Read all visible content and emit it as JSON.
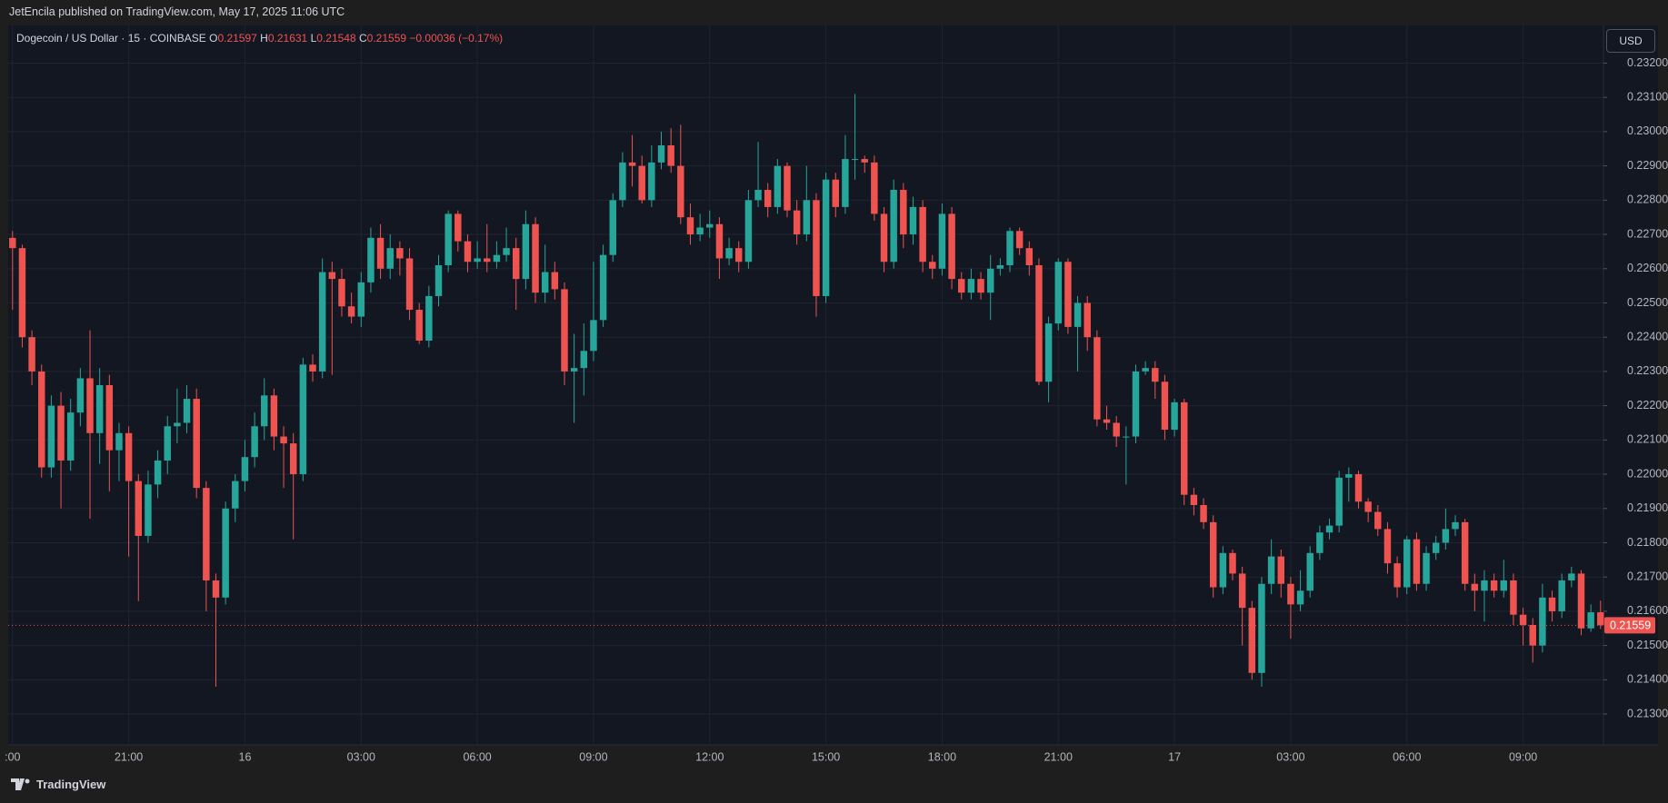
{
  "header": {
    "published": "JetEncila published on TradingView.com, May 17, 2025 11:06 UTC"
  },
  "footer": {
    "brand": "TradingView"
  },
  "chart_data": {
    "type": "candlestick",
    "title": "Dogecoin / US Dollar · 15 · COINBASE",
    "currency": "USD",
    "ohlc_labels": [
      "O",
      "H",
      "L",
      "C"
    ],
    "change": "−0.00036 (−0.17%)",
    "up_color": "#26a69a",
    "down_color": "#ef5350",
    "grid": true,
    "ylim": [
      0.2121,
      0.2331
    ],
    "yticks": [
      {
        "value": 0.213,
        "label": "0.21300"
      },
      {
        "value": 0.214,
        "label": "0.21400"
      },
      {
        "value": 0.215,
        "label": "0.21500"
      },
      {
        "value": 0.216,
        "label": "0.21600"
      },
      {
        "value": 0.217,
        "label": "0.21700"
      },
      {
        "value": 0.218,
        "label": "0.21800"
      },
      {
        "value": 0.219,
        "label": "0.21900"
      },
      {
        "value": 0.22,
        "label": "0.22000"
      },
      {
        "value": 0.221,
        "label": "0.22100"
      },
      {
        "value": 0.222,
        "label": "0.22200"
      },
      {
        "value": 0.223,
        "label": "0.22300"
      },
      {
        "value": 0.224,
        "label": "0.22400"
      },
      {
        "value": 0.225,
        "label": "0.22500"
      },
      {
        "value": 0.226,
        "label": "0.22600"
      },
      {
        "value": 0.227,
        "label": "0.22700"
      },
      {
        "value": 0.228,
        "label": "0.22800"
      },
      {
        "value": 0.229,
        "label": "0.22900"
      },
      {
        "value": 0.23,
        "label": "0.23000"
      },
      {
        "value": 0.231,
        "label": "0.23100"
      },
      {
        "value": 0.232,
        "label": "0.23200"
      }
    ],
    "xlim": [
      -0.45,
      164.3
    ],
    "xticks": [
      {
        "value": 0,
        "label": ":00"
      },
      {
        "value": 12,
        "label": "21:00"
      },
      {
        "value": 24,
        "label": "16"
      },
      {
        "value": 36,
        "label": "03:00"
      },
      {
        "value": 48,
        "label": "06:00"
      },
      {
        "value": 60,
        "label": "09:00"
      },
      {
        "value": 72,
        "label": "12:00"
      },
      {
        "value": 84,
        "label": "15:00"
      },
      {
        "value": 96,
        "label": "18:00"
      },
      {
        "value": 108,
        "label": "21:00"
      },
      {
        "value": 120,
        "label": "17"
      },
      {
        "value": 132,
        "label": "03:00"
      },
      {
        "value": 144,
        "label": "06:00"
      },
      {
        "value": 156,
        "label": "09:00"
      }
    ],
    "candles": [
      [
        0.2269,
        0.2271,
        0.2248,
        0.2266
      ],
      [
        0.2266,
        0.2267,
        0.2237,
        0.224
      ],
      [
        0.224,
        0.2242,
        0.2226,
        0.223
      ],
      [
        0.223,
        0.2232,
        0.2199,
        0.2202
      ],
      [
        0.2202,
        0.2223,
        0.2199,
        0.222
      ],
      [
        0.222,
        0.2224,
        0.219,
        0.2204
      ],
      [
        0.2204,
        0.2222,
        0.2201,
        0.2218
      ],
      [
        0.2218,
        0.2231,
        0.2214,
        0.2228
      ],
      [
        0.2228,
        0.2242,
        0.2187,
        0.2212
      ],
      [
        0.2212,
        0.2231,
        0.2203,
        0.2226
      ],
      [
        0.2226,
        0.2229,
        0.2195,
        0.2207
      ],
      [
        0.2207,
        0.2215,
        0.2198,
        0.2212
      ],
      [
        0.2212,
        0.2214,
        0.2176,
        0.2198
      ],
      [
        0.2198,
        0.22,
        0.2163,
        0.2182
      ],
      [
        0.2182,
        0.2201,
        0.218,
        0.2197
      ],
      [
        0.2197,
        0.2207,
        0.2193,
        0.2204
      ],
      [
        0.2204,
        0.2217,
        0.22,
        0.2214
      ],
      [
        0.2214,
        0.2225,
        0.2209,
        0.2215
      ],
      [
        0.2215,
        0.2226,
        0.2212,
        0.2222
      ],
      [
        0.2222,
        0.2225,
        0.2193,
        0.2196
      ],
      [
        0.2196,
        0.2198,
        0.216,
        0.2169
      ],
      [
        0.2169,
        0.2171,
        0.2138,
        0.2164
      ],
      [
        0.2164,
        0.2192,
        0.2162,
        0.219
      ],
      [
        0.219,
        0.22,
        0.2186,
        0.2198
      ],
      [
        0.2198,
        0.221,
        0.2195,
        0.2205
      ],
      [
        0.2205,
        0.2218,
        0.2202,
        0.2214
      ],
      [
        0.2214,
        0.2228,
        0.221,
        0.2223
      ],
      [
        0.2223,
        0.2225,
        0.2207,
        0.2211
      ],
      [
        0.2211,
        0.2214,
        0.2196,
        0.2209
      ],
      [
        0.2209,
        0.2212,
        0.2181,
        0.22
      ],
      [
        0.22,
        0.2234,
        0.2198,
        0.2232
      ],
      [
        0.2232,
        0.2235,
        0.2227,
        0.223
      ],
      [
        0.223,
        0.2263,
        0.2228,
        0.2259
      ],
      [
        0.2259,
        0.2262,
        0.2229,
        0.2257
      ],
      [
        0.2257,
        0.226,
        0.2246,
        0.2249
      ],
      [
        0.2249,
        0.2253,
        0.2244,
        0.2246
      ],
      [
        0.2246,
        0.2259,
        0.2243,
        0.2256
      ],
      [
        0.2256,
        0.2272,
        0.2253,
        0.2269
      ],
      [
        0.2269,
        0.2273,
        0.2257,
        0.226
      ],
      [
        0.226,
        0.227,
        0.2257,
        0.2266
      ],
      [
        0.2266,
        0.2268,
        0.2258,
        0.2263
      ],
      [
        0.2263,
        0.2266,
        0.2245,
        0.2248
      ],
      [
        0.2248,
        0.225,
        0.2238,
        0.2239
      ],
      [
        0.2239,
        0.2255,
        0.2237,
        0.2252
      ],
      [
        0.2252,
        0.2264,
        0.2249,
        0.2261
      ],
      [
        0.2261,
        0.2277,
        0.2259,
        0.2276
      ],
      [
        0.2276,
        0.2277,
        0.2265,
        0.2268
      ],
      [
        0.2268,
        0.227,
        0.2259,
        0.2262
      ],
      [
        0.2262,
        0.2268,
        0.226,
        0.2263
      ],
      [
        0.2263,
        0.2273,
        0.2259,
        0.2262
      ],
      [
        0.2262,
        0.2268,
        0.226,
        0.2264
      ],
      [
        0.2264,
        0.2272,
        0.2262,
        0.2266
      ],
      [
        0.2266,
        0.2269,
        0.2248,
        0.2257
      ],
      [
        0.2257,
        0.2277,
        0.2254,
        0.2273
      ],
      [
        0.2273,
        0.2275,
        0.225,
        0.2253
      ],
      [
        0.2253,
        0.2267,
        0.225,
        0.2259
      ],
      [
        0.2259,
        0.2262,
        0.2251,
        0.2254
      ],
      [
        0.2254,
        0.2256,
        0.2226,
        0.223
      ],
      [
        0.223,
        0.2241,
        0.2215,
        0.2231
      ],
      [
        0.2231,
        0.2244,
        0.2223,
        0.2236
      ],
      [
        0.2236,
        0.2262,
        0.2233,
        0.2245
      ],
      [
        0.2245,
        0.2267,
        0.2243,
        0.2264
      ],
      [
        0.2264,
        0.2282,
        0.2262,
        0.228
      ],
      [
        0.228,
        0.2294,
        0.2278,
        0.2291
      ],
      [
        0.2291,
        0.2299,
        0.2284,
        0.229
      ],
      [
        0.229,
        0.2293,
        0.2279,
        0.228
      ],
      [
        0.228,
        0.2296,
        0.2278,
        0.2291
      ],
      [
        0.2291,
        0.23,
        0.2289,
        0.2296
      ],
      [
        0.2296,
        0.2301,
        0.2288,
        0.229
      ],
      [
        0.229,
        0.2302,
        0.2273,
        0.2275
      ],
      [
        0.2275,
        0.2279,
        0.2267,
        0.227
      ],
      [
        0.227,
        0.2276,
        0.2268,
        0.2272
      ],
      [
        0.2272,
        0.2277,
        0.2269,
        0.2273
      ],
      [
        0.2273,
        0.2275,
        0.2257,
        0.2263
      ],
      [
        0.2263,
        0.2269,
        0.2261,
        0.2266
      ],
      [
        0.2266,
        0.2268,
        0.2259,
        0.2262
      ],
      [
        0.2262,
        0.2283,
        0.226,
        0.228
      ],
      [
        0.228,
        0.2297,
        0.2278,
        0.2283
      ],
      [
        0.2283,
        0.2285,
        0.2275,
        0.2278
      ],
      [
        0.2278,
        0.2292,
        0.2276,
        0.229
      ],
      [
        0.229,
        0.2291,
        0.2275,
        0.2277
      ],
      [
        0.2277,
        0.228,
        0.2267,
        0.227
      ],
      [
        0.227,
        0.229,
        0.2268,
        0.228
      ],
      [
        0.228,
        0.2282,
        0.2246,
        0.2252
      ],
      [
        0.2252,
        0.2288,
        0.225,
        0.2286
      ],
      [
        0.2286,
        0.2288,
        0.2275,
        0.2278
      ],
      [
        0.2278,
        0.2299,
        0.2276,
        0.2292
      ],
      [
        0.2292,
        0.2311,
        0.2286,
        0.2292
      ],
      [
        0.2292,
        0.2293,
        0.2288,
        0.2291
      ],
      [
        0.2291,
        0.2293,
        0.2274,
        0.2276
      ],
      [
        0.2276,
        0.2278,
        0.2259,
        0.2262
      ],
      [
        0.2262,
        0.2286,
        0.226,
        0.2283
      ],
      [
        0.2283,
        0.2285,
        0.2266,
        0.227
      ],
      [
        0.227,
        0.2281,
        0.2267,
        0.2278
      ],
      [
        0.2278,
        0.228,
        0.2259,
        0.2262
      ],
      [
        0.2262,
        0.2264,
        0.2257,
        0.226
      ],
      [
        0.226,
        0.2279,
        0.2258,
        0.2276
      ],
      [
        0.2276,
        0.2278,
        0.2254,
        0.2257
      ],
      [
        0.2257,
        0.2259,
        0.2251,
        0.2253
      ],
      [
        0.2253,
        0.226,
        0.2251,
        0.2257
      ],
      [
        0.2257,
        0.2259,
        0.2251,
        0.2253
      ],
      [
        0.2253,
        0.2264,
        0.2245,
        0.226
      ],
      [
        0.226,
        0.2263,
        0.2258,
        0.2261
      ],
      [
        0.2261,
        0.2272,
        0.2259,
        0.2271
      ],
      [
        0.2271,
        0.2272,
        0.2264,
        0.2266
      ],
      [
        0.2266,
        0.2268,
        0.2258,
        0.2261
      ],
      [
        0.2261,
        0.2263,
        0.2226,
        0.2227
      ],
      [
        0.2227,
        0.2246,
        0.2221,
        0.2244
      ],
      [
        0.2244,
        0.2263,
        0.2242,
        0.2262
      ],
      [
        0.2262,
        0.2263,
        0.2241,
        0.2243
      ],
      [
        0.2243,
        0.2252,
        0.223,
        0.225
      ],
      [
        0.225,
        0.2252,
        0.2236,
        0.224
      ],
      [
        0.224,
        0.2242,
        0.2214,
        0.2216
      ],
      [
        0.2216,
        0.222,
        0.2213,
        0.2215
      ],
      [
        0.2215,
        0.2217,
        0.2208,
        0.2211
      ],
      [
        0.2211,
        0.2214,
        0.2197,
        0.2211
      ],
      [
        0.2211,
        0.2232,
        0.2209,
        0.223
      ],
      [
        0.223,
        0.2233,
        0.2229,
        0.2231
      ],
      [
        0.2231,
        0.2233,
        0.2222,
        0.2227
      ],
      [
        0.2227,
        0.2229,
        0.221,
        0.2213
      ],
      [
        0.2213,
        0.2222,
        0.2211,
        0.2221
      ],
      [
        0.2221,
        0.2222,
        0.2191,
        0.2194
      ],
      [
        0.2194,
        0.2196,
        0.2188,
        0.2191
      ],
      [
        0.2191,
        0.2193,
        0.2184,
        0.2186
      ],
      [
        0.2186,
        0.2188,
        0.2164,
        0.2167
      ],
      [
        0.2167,
        0.2179,
        0.2165,
        0.2177
      ],
      [
        0.2177,
        0.2178,
        0.2169,
        0.2171
      ],
      [
        0.2171,
        0.2173,
        0.215,
        0.2161
      ],
      [
        0.2161,
        0.2163,
        0.214,
        0.2142
      ],
      [
        0.2142,
        0.217,
        0.2138,
        0.2168
      ],
      [
        0.2168,
        0.2181,
        0.2165,
        0.2176
      ],
      [
        0.2176,
        0.2178,
        0.2164,
        0.2168
      ],
      [
        0.2168,
        0.217,
        0.2152,
        0.2162
      ],
      [
        0.2162,
        0.2172,
        0.216,
        0.2166
      ],
      [
        0.2166,
        0.2179,
        0.2164,
        0.2177
      ],
      [
        0.2177,
        0.2185,
        0.2175,
        0.2183
      ],
      [
        0.2183,
        0.2187,
        0.2181,
        0.2185
      ],
      [
        0.2185,
        0.2201,
        0.2183,
        0.2199
      ],
      [
        0.2199,
        0.2202,
        0.2192,
        0.22
      ],
      [
        0.22,
        0.2201,
        0.219,
        0.2192
      ],
      [
        0.2192,
        0.2193,
        0.2186,
        0.2189
      ],
      [
        0.2189,
        0.2191,
        0.2182,
        0.2184
      ],
      [
        0.2184,
        0.2186,
        0.2171,
        0.2174
      ],
      [
        0.2174,
        0.2176,
        0.2164,
        0.2167
      ],
      [
        0.2167,
        0.2182,
        0.2165,
        0.2181
      ],
      [
        0.2181,
        0.2183,
        0.2166,
        0.2168
      ],
      [
        0.2168,
        0.2179,
        0.2166,
        0.2177
      ],
      [
        0.2177,
        0.2182,
        0.2175,
        0.218
      ],
      [
        0.218,
        0.219,
        0.2178,
        0.2184
      ],
      [
        0.2184,
        0.2188,
        0.2182,
        0.2186
      ],
      [
        0.2186,
        0.2187,
        0.2166,
        0.2168
      ],
      [
        0.2168,
        0.2171,
        0.216,
        0.2166
      ],
      [
        0.2166,
        0.2172,
        0.2157,
        0.2169
      ],
      [
        0.2169,
        0.2171,
        0.2164,
        0.2166
      ],
      [
        0.2166,
        0.2175,
        0.2164,
        0.2169
      ],
      [
        0.2169,
        0.2171,
        0.2156,
        0.2159
      ],
      [
        0.2159,
        0.2161,
        0.215,
        0.2156
      ],
      [
        0.2156,
        0.2158,
        0.2145,
        0.215
      ],
      [
        0.215,
        0.2168,
        0.2148,
        0.2164
      ],
      [
        0.2164,
        0.2166,
        0.2157,
        0.216
      ],
      [
        0.216,
        0.2171,
        0.2158,
        0.2169
      ],
      [
        0.2169,
        0.2173,
        0.2167,
        0.2171
      ],
      [
        0.2171,
        0.2172,
        0.2153,
        0.2155
      ],
      [
        0.2155,
        0.2162,
        0.2154,
        0.21597
      ],
      [
        0.21597,
        0.21631,
        0.21548,
        0.21559
      ]
    ]
  }
}
